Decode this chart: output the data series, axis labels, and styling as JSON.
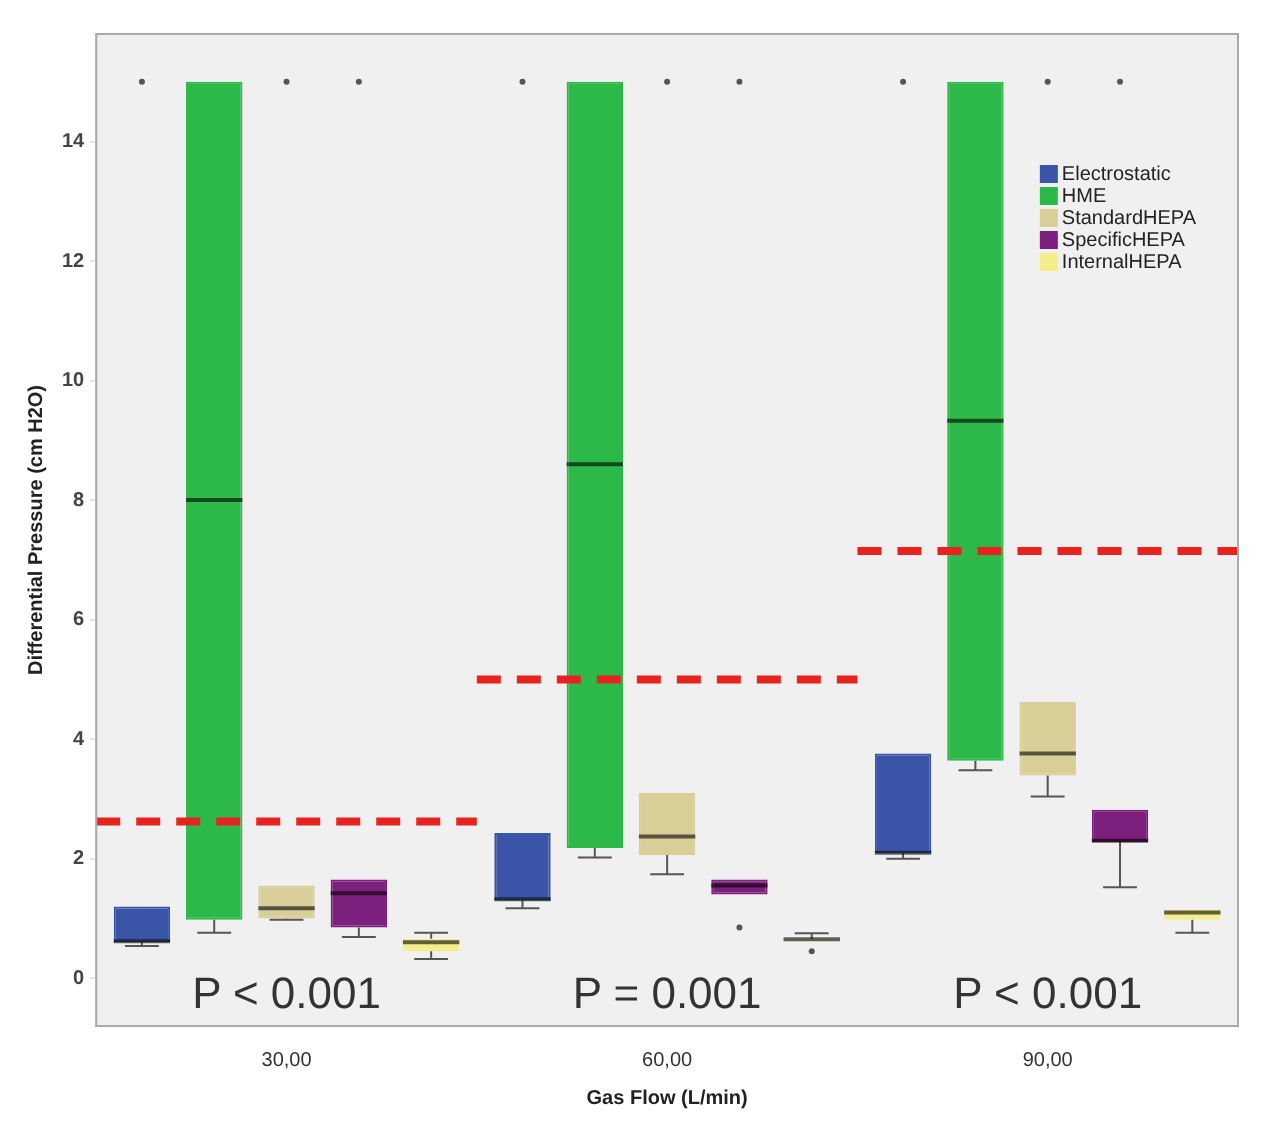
{
  "chart_data": {
    "type": "box",
    "xlabel": "Gas Flow (L/min)",
    "ylabel": "Differential Pressure (cm H2O)",
    "categories": [
      "30,00",
      "60,00",
      "90,00"
    ],
    "ylim": [
      -0.8,
      15.8
    ],
    "yticks": [
      0,
      2,
      4,
      6,
      8,
      10,
      12,
      14
    ],
    "grid": false,
    "legend": "top right",
    "series": [
      {
        "name": "Electrostatic",
        "color": "#3a55a8",
        "boxes": [
          {
            "low": 0.54,
            "q1": 0.6,
            "median": 0.62,
            "q3": 1.2,
            "high": 1.2,
            "outliers": [
              15
            ]
          },
          {
            "low": 1.17,
            "q1": 1.3,
            "median": 1.32,
            "q3": 2.43,
            "high": 2.43,
            "outliers": [
              15
            ]
          },
          {
            "low": 2.0,
            "q1": 2.09,
            "median": 2.1,
            "q3": 3.76,
            "high": 3.76,
            "outliers": [
              15
            ]
          }
        ]
      },
      {
        "name": "HME",
        "color": "#2db84a",
        "boxes": [
          {
            "low": 0.76,
            "q1": 0.98,
            "median": 8.0,
            "q3": 15,
            "high": 15
          },
          {
            "low": 2.02,
            "q1": 2.18,
            "median": 8.6,
            "q3": 15,
            "high": 15
          },
          {
            "low": 3.48,
            "q1": 3.64,
            "median": 9.33,
            "q3": 15,
            "high": 15
          }
        ]
      },
      {
        "name": "StandardHEPA",
        "color": "#d8cf98",
        "boxes": [
          {
            "low": 0.98,
            "q1": 1.0,
            "median": 1.17,
            "q3": 1.55,
            "high": 1.55,
            "outliers": [
              15
            ]
          },
          {
            "low": 1.74,
            "q1": 2.06,
            "median": 2.37,
            "q3": 3.1,
            "high": 3.1,
            "outliers": [
              15
            ]
          },
          {
            "low": 3.04,
            "q1": 3.39,
            "median": 3.76,
            "q3": 4.62,
            "high": 4.62,
            "outliers": [
              15
            ]
          }
        ]
      },
      {
        "name": "SpecificHEPA",
        "color": "#7d1f7d",
        "boxes": [
          {
            "low": 0.69,
            "q1": 0.85,
            "median": 1.42,
            "q3": 1.65,
            "high": 1.65,
            "outliers": [
              15
            ]
          },
          {
            "low": 1.4,
            "q1": 1.4,
            "median": 1.55,
            "q3": 1.65,
            "high": 1.65,
            "outliers": [
              0.85,
              15
            ]
          },
          {
            "low": 1.52,
            "q1": 2.28,
            "median": 2.3,
            "q3": 2.82,
            "high": 2.82,
            "outliers": [
              15
            ]
          }
        ]
      },
      {
        "name": "InternalHEPA",
        "color": "#f3ee8a",
        "boxes": [
          {
            "low": 0.32,
            "q1": 0.45,
            "median": 0.6,
            "q3": 0.66,
            "high": 0.76
          },
          {
            "low": 0.63,
            "q1": 0.63,
            "median": 0.65,
            "q3": 0.66,
            "high": 0.75,
            "outliers": [
              0.45
            ]
          },
          {
            "low": 0.76,
            "q1": 0.98,
            "median": 1.1,
            "q3": 1.14,
            "high": 1.14
          }
        ]
      }
    ],
    "ref_lines": [
      {
        "axis": "y",
        "value": 2.62,
        "color": "#e8231f",
        "line_style": "dashed"
      },
      {
        "axis": "y",
        "value": 5.0,
        "color": "#e8231f",
        "line_style": "dashed"
      },
      {
        "axis": "y",
        "value": 7.15,
        "color": "#e8231f",
        "line_style": "dashed"
      }
    ],
    "annotations": [
      "P < 0.001",
      "P = 0.001",
      "P < 0.001"
    ]
  }
}
